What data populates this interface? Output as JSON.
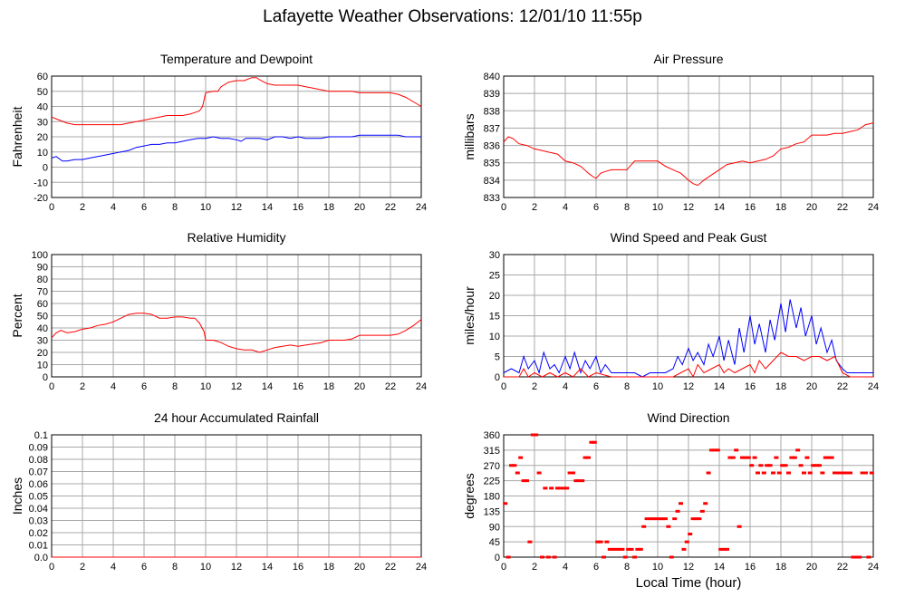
{
  "page": {
    "title": "Lafayette Weather Observations: 12/01/10 11:55p",
    "x_caption": "Local Time (hour)"
  },
  "colors": {
    "red": "#ff0000",
    "blue": "#0000ff",
    "grid": "#a8a8a8",
    "frame": "#000000"
  },
  "chart_data": [
    {
      "id": "temp",
      "type": "line",
      "title": "Temperature and Dewpoint",
      "xlabel": "",
      "ylabel": "Fahrenheit",
      "xlim": [
        0,
        24
      ],
      "ylim": [
        -20,
        60
      ],
      "xticks": [
        "0",
        "2",
        "4",
        "6",
        "8",
        "10",
        "12",
        "14",
        "16",
        "18",
        "20",
        "22",
        "24"
      ],
      "yticks": [
        "-20",
        "-10",
        "0",
        "10",
        "20",
        "30",
        "40",
        "50",
        "60"
      ],
      "grid": true,
      "series": [
        {
          "color": "#ff0000",
          "x": [
            0,
            0.5,
            1,
            1.5,
            2,
            3,
            4,
            4.5,
            5,
            5.5,
            6,
            6.5,
            7,
            7.5,
            8,
            8.5,
            9,
            9.3,
            9.6,
            9.8,
            10,
            10.5,
            10.8,
            11,
            11.5,
            12,
            12.5,
            13,
            13.3,
            13.6,
            14,
            14.5,
            15,
            15.5,
            16,
            16.5,
            17,
            17.5,
            18,
            18.5,
            19,
            19.5,
            20,
            20.5,
            21,
            21.5,
            22,
            22.5,
            23,
            23.5,
            24
          ],
          "y": [
            33,
            31,
            29,
            28,
            28,
            28,
            28,
            28,
            29,
            30,
            31,
            32,
            33,
            34,
            34,
            34,
            35,
            36,
            37,
            40,
            49,
            50,
            50,
            53,
            56,
            57,
            57,
            59,
            59,
            57,
            55,
            54,
            54,
            54,
            54,
            53,
            52,
            51,
            50,
            50,
            50,
            50,
            49,
            49,
            49,
            49,
            49,
            48,
            46,
            43,
            40
          ]
        },
        {
          "color": "#0000ff",
          "x": [
            0,
            0.3,
            0.7,
            1,
            1.5,
            2,
            2.5,
            3,
            3.5,
            4,
            4.5,
            5,
            5.5,
            6,
            6.5,
            7,
            7.5,
            8,
            8.5,
            9,
            9.5,
            10,
            10.5,
            11,
            11.5,
            12,
            12.3,
            12.6,
            13,
            13.5,
            14,
            14.5,
            15,
            15.5,
            16,
            16.5,
            17,
            17.5,
            18,
            18.5,
            19,
            19.5,
            20,
            20.5,
            21,
            21.5,
            22,
            22.5,
            23,
            23.5,
            24
          ],
          "y": [
            6,
            7,
            4,
            4,
            5,
            5,
            6,
            7,
            8,
            9,
            10,
            11,
            13,
            14,
            15,
            15,
            16,
            16,
            17,
            18,
            19,
            19,
            20,
            19,
            19,
            18,
            17,
            19,
            19,
            19,
            18,
            20,
            20,
            19,
            20,
            19,
            19,
            19,
            20,
            20,
            20,
            20,
            21,
            21,
            21,
            21,
            21,
            21,
            20,
            20,
            20
          ]
        }
      ]
    },
    {
      "id": "pressure",
      "type": "line",
      "title": "Air Pressure",
      "xlabel": "",
      "ylabel": "millibars",
      "xlim": [
        0,
        24
      ],
      "ylim": [
        833,
        840
      ],
      "xticks": [
        "0",
        "2",
        "4",
        "6",
        "8",
        "10",
        "12",
        "14",
        "16",
        "18",
        "20",
        "22",
        "24"
      ],
      "yticks": [
        "833",
        "834",
        "835",
        "836",
        "837",
        "838",
        "839",
        "840"
      ],
      "grid": true,
      "series": [
        {
          "color": "#ff0000",
          "x": [
            0,
            0.3,
            0.6,
            1,
            1.5,
            2,
            2.5,
            3,
            3.5,
            4,
            4.5,
            5,
            5.5,
            5.8,
            6,
            6.3,
            6.6,
            7,
            7.5,
            8,
            8.5,
            9,
            9.5,
            10,
            10.5,
            11,
            11.5,
            12,
            12.3,
            12.6,
            13,
            13.5,
            14,
            14.5,
            15,
            15.5,
            16,
            16.5,
            17,
            17.5,
            18,
            18.5,
            19,
            19.5,
            20,
            20.5,
            21,
            21.5,
            22,
            22.5,
            23,
            23.5,
            24
          ],
          "y": [
            836.2,
            836.5,
            836.4,
            836.1,
            836.0,
            835.8,
            835.7,
            835.6,
            835.5,
            835.1,
            835.0,
            834.8,
            834.4,
            834.2,
            834.1,
            834.4,
            834.5,
            834.6,
            834.6,
            834.6,
            835.1,
            835.1,
            835.1,
            835.1,
            834.8,
            834.6,
            834.4,
            834.0,
            833.8,
            833.7,
            834.0,
            834.3,
            834.6,
            834.9,
            835.0,
            835.1,
            835.0,
            835.1,
            835.2,
            835.4,
            835.8,
            835.9,
            836.1,
            836.2,
            836.6,
            836.6,
            836.6,
            836.7,
            836.7,
            836.8,
            836.9,
            837.2,
            837.3
          ]
        }
      ]
    },
    {
      "id": "humidity",
      "type": "line",
      "title": "Relative Humidity",
      "xlabel": "",
      "ylabel": "Percent",
      "xlim": [
        0,
        24
      ],
      "ylim": [
        0,
        100
      ],
      "xticks": [
        "0",
        "2",
        "4",
        "6",
        "8",
        "10",
        "12",
        "14",
        "16",
        "18",
        "20",
        "22",
        "24"
      ],
      "yticks": [
        "0",
        "10",
        "20",
        "30",
        "40",
        "50",
        "60",
        "70",
        "80",
        "90",
        "100"
      ],
      "grid": true,
      "series": [
        {
          "color": "#ff0000",
          "x": [
            0,
            0.3,
            0.6,
            1,
            1.5,
            2,
            2.5,
            3,
            3.5,
            4,
            4.5,
            5,
            5.5,
            6,
            6.5,
            7,
            7.5,
            8,
            8.5,
            9,
            9.3,
            9.6,
            9.9,
            10,
            10.5,
            11,
            11.5,
            12,
            12.5,
            13,
            13.5,
            14,
            14.5,
            15,
            15.5,
            16,
            16.5,
            17,
            17.5,
            18,
            18.5,
            19,
            19.5,
            20,
            20.5,
            21,
            21.5,
            22,
            22.5,
            23,
            23.5,
            24
          ],
          "y": [
            32,
            36,
            38,
            36,
            37,
            39,
            40,
            42,
            43,
            45,
            48,
            51,
            52,
            52,
            51,
            48,
            48,
            49,
            49,
            48,
            48,
            44,
            37,
            30,
            30,
            28,
            25,
            23,
            22,
            22,
            20,
            22,
            24,
            25,
            26,
            25,
            26,
            27,
            28,
            30,
            30,
            30,
            31,
            34,
            34,
            34,
            34,
            34,
            35,
            38,
            42,
            47
          ]
        }
      ]
    },
    {
      "id": "wind",
      "type": "line",
      "title": "Wind Speed and Peak Gust",
      "xlabel": "",
      "ylabel": "miles/hour",
      "xlim": [
        0,
        24
      ],
      "ylim": [
        0,
        30
      ],
      "xticks": [
        "0",
        "2",
        "4",
        "6",
        "8",
        "10",
        "12",
        "14",
        "16",
        "18",
        "20",
        "22",
        "24"
      ],
      "yticks": [
        "0",
        "5",
        "10",
        "15",
        "20",
        "25",
        "30"
      ],
      "grid": true,
      "series": [
        {
          "color": "#0000ff",
          "x": [
            0,
            0.5,
            1,
            1.3,
            1.6,
            2,
            2.3,
            2.6,
            3,
            3.3,
            3.6,
            4,
            4.3,
            4.6,
            5,
            5.3,
            5.6,
            6,
            6.3,
            6.6,
            7,
            7.5,
            8,
            8.5,
            9,
            9.5,
            10,
            10.5,
            11,
            11.3,
            11.6,
            12,
            12.3,
            12.6,
            13,
            13.3,
            13.6,
            14,
            14.3,
            14.6,
            15,
            15.3,
            15.6,
            16,
            16.3,
            16.6,
            17,
            17.3,
            17.6,
            18,
            18.3,
            18.6,
            19,
            19.3,
            19.6,
            20,
            20.3,
            20.6,
            21,
            21.3,
            21.6,
            22,
            22.3,
            22.6,
            23,
            23.5,
            24
          ],
          "y": [
            1,
            2,
            1,
            5,
            2,
            4,
            1,
            6,
            2,
            3,
            1,
            5,
            2,
            6,
            1,
            4,
            2,
            5,
            1,
            3,
            1,
            1,
            1,
            1,
            0,
            1,
            1,
            1,
            2,
            5,
            3,
            7,
            4,
            6,
            3,
            8,
            5,
            10,
            4,
            9,
            3,
            12,
            6,
            15,
            8,
            13,
            6,
            14,
            9,
            18,
            11,
            19,
            12,
            17,
            10,
            15,
            8,
            12,
            6,
            9,
            4,
            2,
            1,
            1,
            1,
            1,
            1
          ]
        },
        {
          "color": "#ff0000",
          "x": [
            0,
            1,
            1.3,
            1.6,
            2,
            2.5,
            3,
            3.5,
            4,
            4.5,
            5,
            5.5,
            6,
            7,
            8,
            9,
            10,
            11,
            11.5,
            12,
            12.3,
            12.6,
            13,
            13.5,
            14,
            14.3,
            14.6,
            15,
            15.5,
            16,
            16.3,
            16.6,
            17,
            17.5,
            18,
            18.5,
            19,
            19.5,
            20,
            20.5,
            21,
            21.5,
            22,
            22.5,
            23,
            24
          ],
          "y": [
            0,
            0,
            2,
            0,
            1,
            0,
            1,
            0,
            1,
            0,
            2,
            0,
            1,
            0,
            0,
            0,
            0,
            0,
            1,
            2,
            0,
            3,
            1,
            2,
            3,
            1,
            2,
            1,
            2,
            3,
            1,
            4,
            2,
            4,
            6,
            5,
            5,
            4,
            5,
            5,
            4,
            5,
            1,
            0,
            0,
            0
          ]
        }
      ]
    },
    {
      "id": "rain",
      "type": "line",
      "title": "24 hour Accumulated Rainfall",
      "xlabel": "",
      "ylabel": "Inches",
      "xlim": [
        0,
        24
      ],
      "ylim": [
        0,
        0.1
      ],
      "xticks": [
        "0",
        "2",
        "4",
        "6",
        "8",
        "10",
        "12",
        "14",
        "16",
        "18",
        "20",
        "22",
        "24"
      ],
      "yticks": [
        "0.0",
        "0.01",
        "0.02",
        "0.03",
        "0.04",
        "0.05",
        "0.06",
        "0.07",
        "0.08",
        "0.09",
        "0.1"
      ],
      "grid": true,
      "series": [
        {
          "color": "#ff0000",
          "x": [
            0,
            24
          ],
          "y": [
            0,
            0
          ]
        }
      ]
    },
    {
      "id": "direction",
      "type": "scatter",
      "title": "Wind Direction",
      "xlabel": "Local Time (hour)",
      "ylabel": "degrees",
      "xlim": [
        0,
        24
      ],
      "ylim": [
        0,
        360
      ],
      "xticks": [
        "0",
        "2",
        "4",
        "6",
        "8",
        "10",
        "12",
        "14",
        "16",
        "18",
        "20",
        "22",
        "24"
      ],
      "yticks": [
        "0",
        "45",
        "90",
        "135",
        "180",
        "225",
        "270",
        "315",
        "360"
      ],
      "grid": true,
      "series": [
        {
          "color": "#ff0000",
          "x": [
            0.1,
            0.3,
            0.5,
            0.7,
            0.9,
            1.1,
            1.3,
            1.5,
            1.7,
            1.9,
            2.1,
            2.3,
            2.5,
            2.7,
            2.9,
            3.1,
            3.3,
            3.5,
            3.7,
            3.9,
            4.1,
            4.3,
            4.5,
            4.7,
            4.9,
            5.1,
            5.3,
            5.5,
            5.7,
            5.9,
            6.1,
            6.3,
            6.5,
            6.7,
            6.9,
            7.1,
            7.3,
            7.5,
            7.7,
            7.9,
            8.1,
            8.3,
            8.5,
            8.7,
            8.9,
            9.1,
            9.3,
            9.5,
            9.7,
            9.9,
            10.1,
            10.3,
            10.5,
            10.7,
            10.9,
            11.1,
            11.3,
            11.5,
            11.7,
            11.9,
            12.1,
            12.3,
            12.5,
            12.7,
            12.9,
            13.1,
            13.3,
            13.5,
            13.7,
            13.9,
            14.1,
            14.3,
            14.5,
            14.7,
            14.9,
            15.1,
            15.3,
            15.5,
            15.7,
            15.9,
            16.1,
            16.3,
            16.5,
            16.7,
            16.9,
            17.1,
            17.3,
            17.5,
            17.7,
            17.9,
            18.1,
            18.3,
            18.5,
            18.7,
            18.9,
            19.1,
            19.3,
            19.5,
            19.7,
            19.9,
            20.1,
            20.3,
            20.5,
            20.7,
            20.9,
            21.1,
            21.3,
            21.5,
            21.7,
            21.9,
            22.1,
            22.3,
            22.5,
            22.7,
            22.9,
            23.1,
            23.3,
            23.5,
            23.7,
            23.9
          ],
          "y": [
            158,
            0,
            270,
            270,
            248,
            293,
            225,
            225,
            45,
            360,
            360,
            248,
            0,
            203,
            0,
            203,
            0,
            203,
            203,
            203,
            203,
            248,
            248,
            225,
            225,
            225,
            293,
            293,
            338,
            338,
            45,
            45,
            0,
            45,
            23,
            23,
            23,
            23,
            23,
            0,
            23,
            23,
            0,
            23,
            23,
            90,
            113,
            113,
            113,
            113,
            113,
            113,
            113,
            90,
            0,
            113,
            135,
            158,
            23,
            45,
            68,
            113,
            113,
            113,
            135,
            158,
            248,
            315,
            315,
            315,
            23,
            23,
            23,
            293,
            293,
            315,
            90,
            293,
            293,
            293,
            270,
            293,
            248,
            270,
            248,
            270,
            270,
            248,
            293,
            248,
            270,
            270,
            248,
            293,
            293,
            315,
            270,
            248,
            293,
            248,
            270,
            270,
            270,
            248,
            293,
            293,
            293,
            248,
            248,
            248,
            248,
            248,
            248,
            0,
            0,
            0,
            248,
            248,
            0,
            248
          ]
        }
      ]
    }
  ]
}
